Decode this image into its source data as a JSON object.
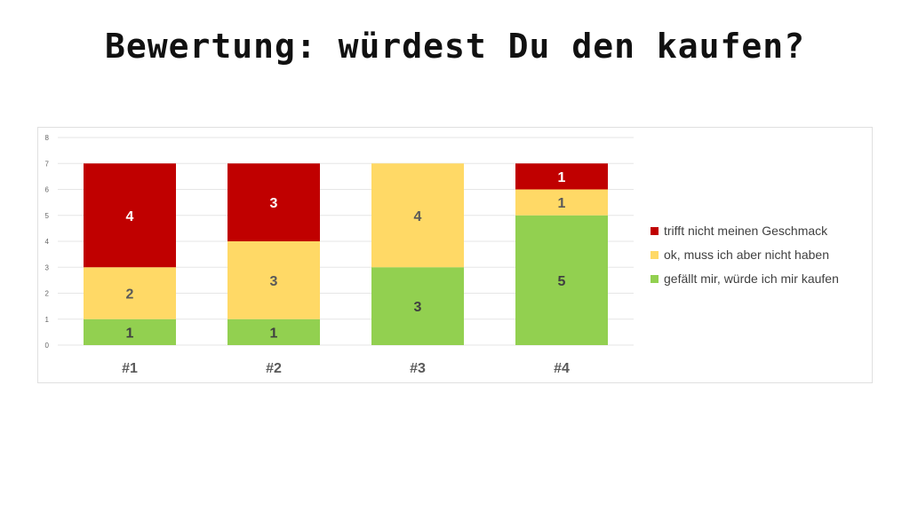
{
  "title": "Bewertung: würdest Du den kaufen?",
  "chart_data": {
    "type": "bar",
    "stacked": true,
    "categories": [
      "#1",
      "#2",
      "#3",
      "#4"
    ],
    "series": [
      {
        "name": "gefällt mir, würde ich mir kaufen",
        "color": "#92d050",
        "label_color": "#404040",
        "values": [
          1,
          1,
          3,
          5
        ]
      },
      {
        "name": "ok, muss ich aber nicht haben",
        "color": "#ffd966",
        "label_color": "#595959",
        "values": [
          2,
          3,
          4,
          1
        ]
      },
      {
        "name": "trifft nicht meinen Geschmack",
        "color": "#c00000",
        "label_color": "#ffffff",
        "values": [
          4,
          3,
          0,
          1
        ]
      }
    ],
    "legend_order": [
      2,
      1,
      0
    ],
    "ylim": [
      0,
      8
    ],
    "yticks": [
      0,
      1,
      2,
      3,
      4,
      5,
      6,
      7,
      8
    ],
    "grid": true,
    "legend_position": "right",
    "title": "",
    "xlabel": "",
    "ylabel": ""
  }
}
